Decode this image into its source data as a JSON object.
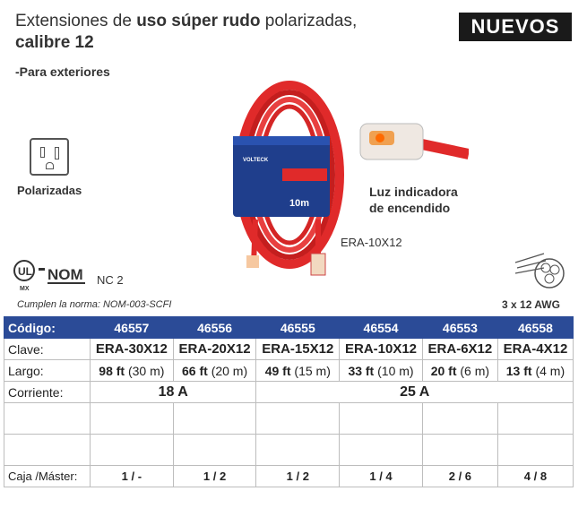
{
  "header": {
    "title_1": "Extensiones de ",
    "title_2": "uso súper rudo",
    "title_3": " polarizadas,",
    "title_4": "calibre 12",
    "subtitle": "-Para exteriores",
    "badge": "NUEVOS"
  },
  "features": {
    "polarizadas": "Polarizadas",
    "cert_nc": "NC 2",
    "norma": "Cumplen la norma: NOM-003-SCFI",
    "luz_1": "Luz indicadora",
    "luz_2": "de encendido",
    "model": "ERA-10X12",
    "awg": "3 x 12 AWG"
  },
  "product_label": {
    "brand": "VOLTECK",
    "length": "10m"
  },
  "table": {
    "labels": {
      "codigo": "Código:",
      "clave": "Clave:",
      "largo": "Largo:",
      "corriente": "Corriente:",
      "caja": "Caja /Máster:"
    },
    "codes": [
      "46557",
      "46556",
      "46555",
      "46554",
      "46553",
      "46558"
    ],
    "claves": [
      "ERA-30X12",
      "ERA-20X12",
      "ERA-15X12",
      "ERA-10X12",
      "ERA-6X12",
      "ERA-4X12"
    ],
    "largo_ft": [
      "98 ft",
      "66 ft",
      "49 ft",
      "33 ft",
      "20 ft",
      "13 ft"
    ],
    "largo_m": [
      "(30 m)",
      "(20 m)",
      "(15 m)",
      "(10 m)",
      "(6 m)",
      "(4 m)"
    ],
    "corriente": [
      "18 A",
      "25 A"
    ],
    "caja": [
      "1 / -",
      "1 / 2",
      "1 / 2",
      "1 / 4",
      "2 / 6",
      "4 / 8"
    ]
  },
  "colors": {
    "header_blue": "#2b4b97",
    "cable_red": "#e02a2a",
    "badge_black": "#1a1a1a"
  }
}
